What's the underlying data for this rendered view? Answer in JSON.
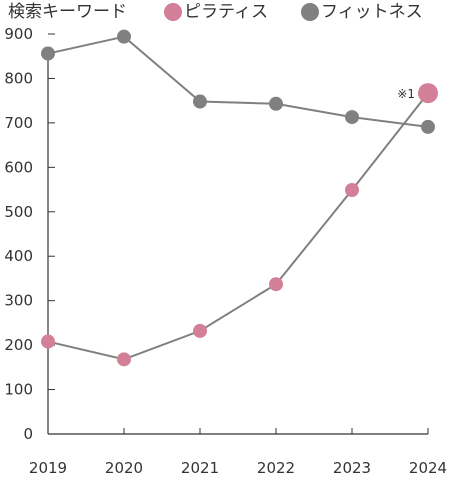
{
  "legend": {
    "title": "検索キーワード",
    "entries": [
      {
        "label": "ピラティス",
        "color": "#d37f97"
      },
      {
        "label": "フィットネス",
        "color": "#808080"
      }
    ]
  },
  "annotation": {
    "text": "※1",
    "series_index": 0,
    "point_index": 5
  },
  "chart_data": {
    "type": "line",
    "x": [
      "2019",
      "2020",
      "2021",
      "2022",
      "2023",
      "2024"
    ],
    "ylim": [
      0,
      900
    ],
    "yticks": [
      0,
      100,
      200,
      300,
      400,
      500,
      600,
      700,
      800,
      900
    ],
    "grid": false,
    "legend_position": "top",
    "series": [
      {
        "name": "ピラティス",
        "color": "#d37f97",
        "values": [
          208,
          168,
          232,
          337,
          549,
          767
        ],
        "line_color": "#808080"
      },
      {
        "name": "フィットネス",
        "color": "#808080",
        "values": [
          856,
          894,
          748,
          743,
          713,
          691
        ],
        "line_color": "#808080"
      }
    ]
  }
}
